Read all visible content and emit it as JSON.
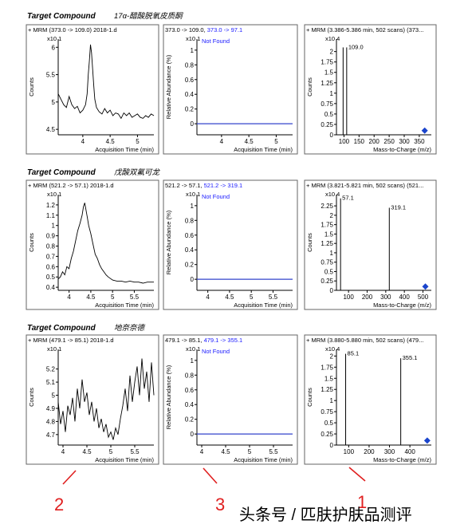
{
  "chart_data": [
    {
      "type": "line",
      "section": 0,
      "title": "+ MRM (373.0 -> 109.0) 2018-1.d",
      "exponent": "x10 1",
      "xlabel": "Acquisition Time (min)",
      "ylabel": "Counts",
      "xlim": [
        3.55,
        5.3
      ],
      "ylim": [
        4.4,
        6.15
      ],
      "xticks": [
        4,
        4.5,
        5
      ],
      "yticks": [
        4.5,
        5,
        5.5,
        6
      ],
      "x": [
        3.55,
        3.6,
        3.65,
        3.7,
        3.75,
        3.8,
        3.85,
        3.9,
        3.95,
        4.0,
        4.05,
        4.08,
        4.1,
        4.12,
        4.14,
        4.16,
        4.18,
        4.2,
        4.22,
        4.25,
        4.3,
        4.35,
        4.4,
        4.45,
        4.5,
        4.55,
        4.6,
        4.65,
        4.7,
        4.75,
        4.8,
        4.85,
        4.9,
        4.95,
        5.0,
        5.05,
        5.1,
        5.15,
        5.2,
        5.25,
        5.3
      ],
      "y": [
        5.15,
        5.05,
        4.95,
        4.9,
        5.1,
        4.95,
        4.88,
        4.92,
        4.8,
        4.85,
        4.95,
        5.15,
        5.5,
        5.75,
        6.05,
        5.9,
        5.6,
        5.3,
        5.05,
        4.9,
        4.82,
        4.78,
        4.88,
        4.8,
        4.85,
        4.75,
        4.8,
        4.78,
        4.7,
        4.8,
        4.75,
        4.8,
        4.72,
        4.75,
        4.78,
        4.72,
        4.7,
        4.75,
        4.72,
        4.78,
        4.75
      ]
    },
    {
      "type": "line",
      "section": 0,
      "title": "373.0 -> 109.0, ",
      "title_blue": "373.0 -> 97.1",
      "exponent": "x10 1",
      "status": "Not Found",
      "xlabel": "Acquisition Time (min)",
      "ylabel": "Relative Abundance (%)",
      "xlim": [
        3.55,
        5.3
      ],
      "ylim": [
        -0.15,
        1.15
      ],
      "xticks": [
        4,
        4.5,
        5
      ],
      "yticks": [
        0,
        0.2,
        0.4,
        0.6,
        0.8,
        1
      ],
      "x": [
        3.55,
        5.3
      ],
      "y": [
        0,
        0
      ]
    },
    {
      "type": "bar",
      "section": 0,
      "title": "+ MRM (3.386-5.386 min, 502 scans) (373...",
      "exponent": "x10 4",
      "xlabel": "Mass-to-Charge (m/z)",
      "ylabel": "Counts",
      "xlim": [
        75,
        390
      ],
      "ylim": [
        0,
        2.3
      ],
      "xticks": [
        100,
        150,
        200,
        250,
        300,
        350
      ],
      "yticks": [
        0,
        0.25,
        0.5,
        0.75,
        1,
        1.25,
        1.5,
        1.75,
        2
      ],
      "peaks": [
        {
          "x": 97.1,
          "y": 2.1,
          "label": ""
        },
        {
          "x": 109.0,
          "y": 2.1,
          "label": "109.0"
        }
      ],
      "marker": [
        368,
        0.1
      ]
    },
    {
      "type": "line",
      "section": 1,
      "title": "+ MRM (521.2 -> 57.1) 2018-1.d",
      "exponent": "x10 1",
      "xlabel": "Acquisition Time (min)",
      "ylabel": "Counts",
      "xlim": [
        3.75,
        5.95
      ],
      "ylim": [
        0.37,
        1.3
      ],
      "xticks": [
        4,
        4.5,
        5,
        5.5
      ],
      "yticks": [
        0.4,
        0.5,
        0.6,
        0.7,
        0.8,
        0.9,
        1,
        1.1,
        1.2
      ],
      "x": [
        3.75,
        3.8,
        3.85,
        3.9,
        3.95,
        4.0,
        4.05,
        4.1,
        4.15,
        4.2,
        4.25,
        4.3,
        4.33,
        4.36,
        4.39,
        4.42,
        4.45,
        4.5,
        4.55,
        4.6,
        4.65,
        4.7,
        4.75,
        4.8,
        4.85,
        4.9,
        5.0,
        5.1,
        5.2,
        5.3,
        5.4,
        5.5,
        5.6,
        5.7,
        5.8,
        5.95
      ],
      "y": [
        0.48,
        0.5,
        0.55,
        0.52,
        0.6,
        0.58,
        0.68,
        0.75,
        0.85,
        0.95,
        1.02,
        1.1,
        1.18,
        1.22,
        1.15,
        1.08,
        1.0,
        0.92,
        0.82,
        0.72,
        0.68,
        0.62,
        0.58,
        0.55,
        0.52,
        0.5,
        0.47,
        0.46,
        0.46,
        0.45,
        0.46,
        0.45,
        0.45,
        0.44,
        0.45,
        0.45
      ]
    },
    {
      "type": "line",
      "section": 1,
      "title": "521.2 -> 57.1, ",
      "title_blue": "521.2 -> 319.1",
      "exponent": "x10 1",
      "status": "Not Found",
      "xlabel": "Acquisition Time (min)",
      "ylabel": "Relative Abundance (%)",
      "xlim": [
        3.75,
        5.95
      ],
      "ylim": [
        -0.15,
        1.15
      ],
      "xticks": [
        4,
        4.5,
        5,
        5.5
      ],
      "yticks": [
        0,
        0.2,
        0.4,
        0.6,
        0.8,
        1
      ],
      "x": [
        3.75,
        5.95
      ],
      "y": [
        0,
        0
      ]
    },
    {
      "type": "bar",
      "section": 1,
      "title": "+ MRM (3.821-5.821 min, 502 scans) (521...",
      "exponent": "x10 4",
      "xlabel": "Mass-to-Charge (m/z)",
      "ylabel": "Counts",
      "xlim": [
        35,
        545
      ],
      "ylim": [
        0,
        2.55
      ],
      "xticks": [
        100,
        200,
        300,
        400,
        500
      ],
      "yticks": [
        0,
        0.25,
        0.5,
        0.75,
        1,
        1.25,
        1.5,
        1.75,
        2,
        2.25
      ],
      "peaks": [
        {
          "x": 57.1,
          "y": 2.45,
          "label": "57.1"
        },
        {
          "x": 319.1,
          "y": 2.2,
          "label": "319.1"
        }
      ],
      "marker": [
        513,
        0.1
      ]
    },
    {
      "type": "line",
      "section": 2,
      "title": "+ MRM (479.1 -> 85.1) 2018-1.d",
      "exponent": "x10 1",
      "xlabel": "Acquisition Time (min)",
      "ylabel": "Counts",
      "xlim": [
        3.9,
        5.9
      ],
      "ylim": [
        4.62,
        5.35
      ],
      "xticks": [
        4,
        4.5,
        5,
        5.5
      ],
      "yticks": [
        4.7,
        4.8,
        4.9,
        5,
        5.1,
        5.2
      ],
      "x": [
        3.9,
        3.95,
        4.0,
        4.05,
        4.1,
        4.15,
        4.2,
        4.25,
        4.3,
        4.35,
        4.4,
        4.45,
        4.5,
        4.55,
        4.6,
        4.65,
        4.7,
        4.75,
        4.8,
        4.85,
        4.9,
        4.95,
        5.0,
        5.05,
        5.1,
        5.15,
        5.2,
        5.25,
        5.3,
        5.35,
        5.4,
        5.45,
        5.5,
        5.55,
        5.6,
        5.65,
        5.7,
        5.75,
        5.8,
        5.85,
        5.9
      ],
      "y": [
        4.95,
        4.78,
        4.88,
        4.72,
        4.92,
        4.85,
        4.98,
        4.8,
        5.05,
        4.9,
        5.12,
        4.95,
        5.02,
        4.85,
        4.95,
        4.8,
        4.9,
        4.75,
        4.82,
        4.72,
        4.78,
        4.68,
        4.72,
        4.66,
        4.75,
        4.7,
        4.82,
        4.92,
        5.05,
        4.88,
        5.15,
        4.95,
        5.1,
        5.22,
        5.0,
        5.28,
        5.05,
        5.18,
        4.95,
        5.25,
        5.0
      ]
    },
    {
      "type": "line",
      "section": 2,
      "title": "479.1 -> 85.1, ",
      "title_blue": "479.1 -> 355.1",
      "exponent": "x10 1",
      "status": "Not Found",
      "xlabel": "Acquisition Time (min)",
      "ylabel": "Relative Abundance (%)",
      "xlim": [
        3.9,
        5.9
      ],
      "ylim": [
        -0.15,
        1.15
      ],
      "xticks": [
        4,
        4.5,
        5,
        5.5
      ],
      "yticks": [
        0,
        0.2,
        0.4,
        0.6,
        0.8,
        1
      ],
      "x": [
        3.9,
        5.9
      ],
      "y": [
        0,
        0
      ]
    },
    {
      "type": "bar",
      "section": 2,
      "title": "+ MRM (3.880-5.880 min, 502 scans) (479...",
      "exponent": "x10 4",
      "xlabel": "Mass-to-Charge (m/z)",
      "ylabel": "Counts",
      "xlim": [
        40,
        505
      ],
      "ylim": [
        0,
        2.15
      ],
      "xticks": [
        100,
        200,
        300,
        400
      ],
      "yticks": [
        0,
        0.25,
        0.5,
        0.75,
        1,
        1.25,
        1.5,
        1.75,
        2
      ],
      "peaks": [
        {
          "x": 85.1,
          "y": 2.05,
          "label": "85.1"
        },
        {
          "x": 355.1,
          "y": 1.95,
          "label": "355.1"
        }
      ],
      "marker": [
        485,
        0.1
      ]
    }
  ],
  "sections": [
    {
      "label": "Target Compound",
      "name": "17α-醋酸脱氧皮质酮"
    },
    {
      "label": "Target Compound",
      "name": "戊酸双氟可龙"
    },
    {
      "label": "Target Compound",
      "name": "地奈奈德"
    }
  ],
  "annotations": [
    "2",
    "3",
    "1"
  ],
  "watermark": "头条号 / 匹肤护肤品测评",
  "colors": {
    "trace": "#000000",
    "found_baseline": "#3344cc",
    "not_found_text": "#1a1aff",
    "marker": "#1a44cc",
    "annotation": "#e02020"
  }
}
